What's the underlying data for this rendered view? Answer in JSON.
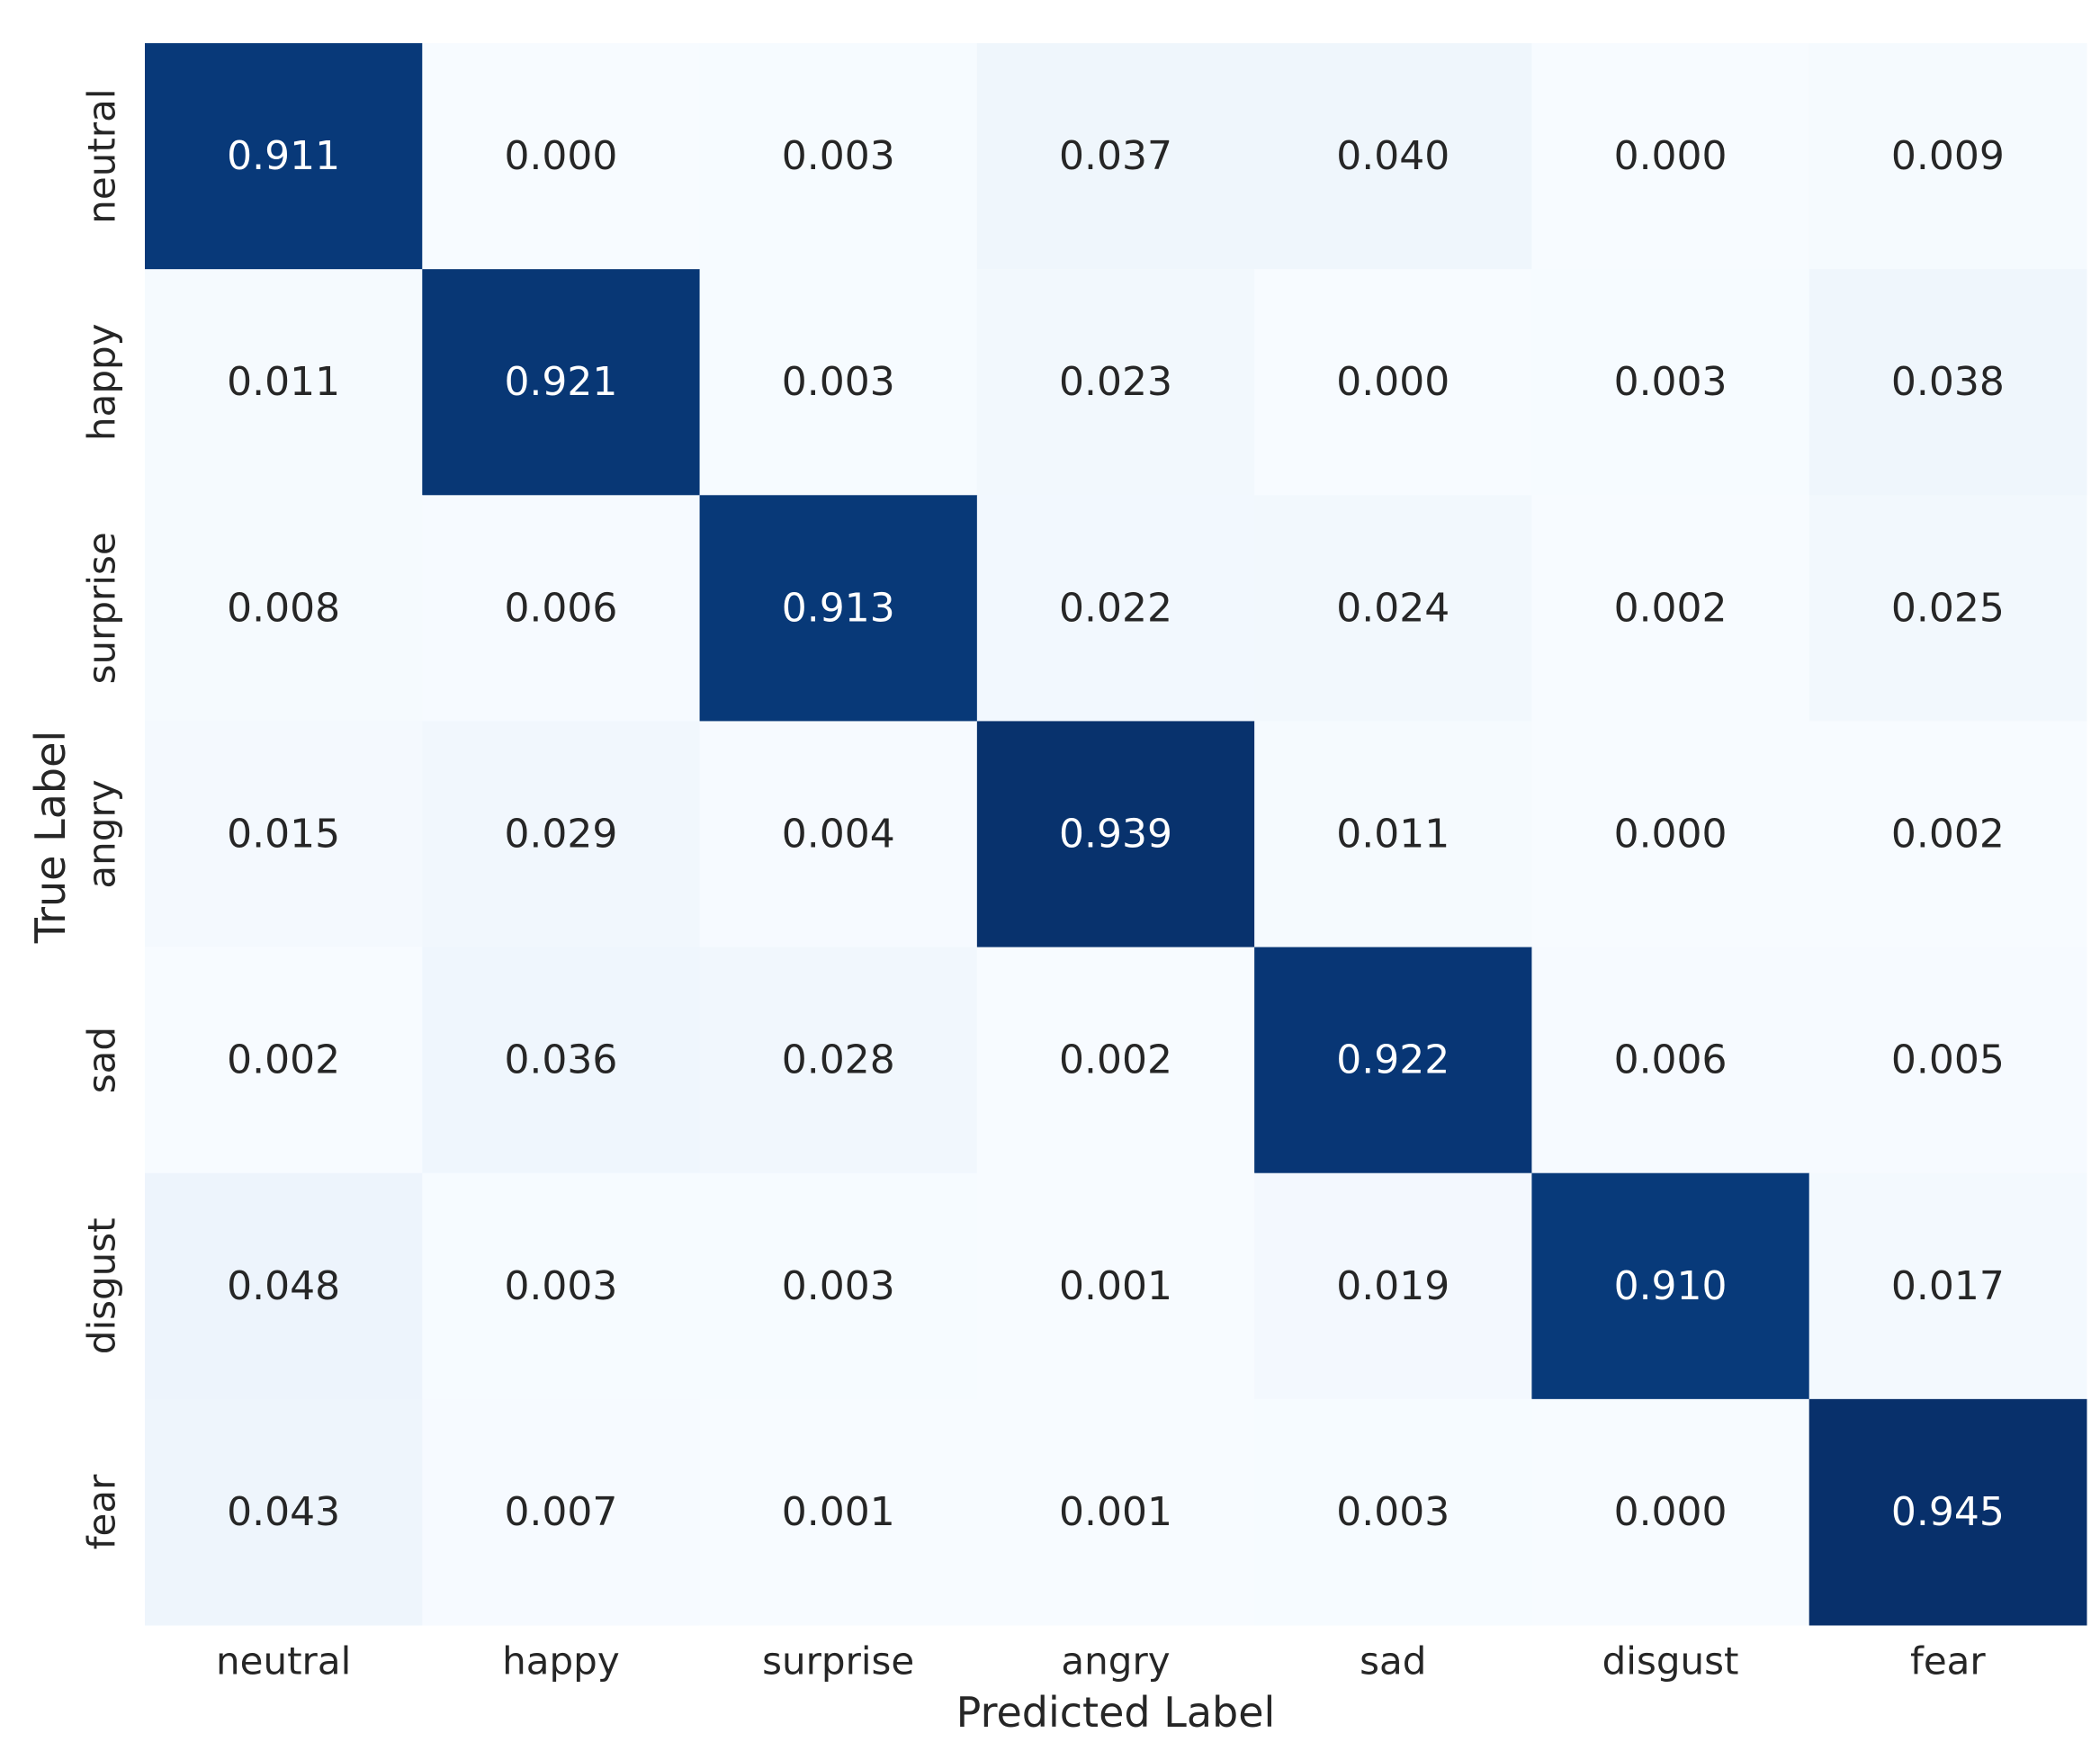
{
  "chart_data": {
    "type": "heatmap",
    "title": "",
    "xlabel": "Predicted Label",
    "ylabel": "True Label",
    "x_categories": [
      "neutral",
      "happy",
      "surprise",
      "angry",
      "sad",
      "disgust",
      "fear"
    ],
    "y_categories": [
      "neutral",
      "happy",
      "surprise",
      "angry",
      "sad",
      "disgust",
      "fear"
    ],
    "values": [
      [
        0.911,
        0.0,
        0.003,
        0.037,
        0.04,
        0.0,
        0.009
      ],
      [
        0.011,
        0.921,
        0.003,
        0.023,
        0.0,
        0.003,
        0.038
      ],
      [
        0.008,
        0.006,
        0.913,
        0.022,
        0.024,
        0.002,
        0.025
      ],
      [
        0.015,
        0.029,
        0.004,
        0.939,
        0.011,
        0.0,
        0.002
      ],
      [
        0.002,
        0.036,
        0.028,
        0.002,
        0.922,
        0.006,
        0.005
      ],
      [
        0.048,
        0.003,
        0.003,
        0.001,
        0.019,
        0.91,
        0.017
      ],
      [
        0.043,
        0.007,
        0.001,
        0.001,
        0.003,
        0.0,
        0.945
      ]
    ],
    "value_format": "0.000",
    "colormap": "Blues",
    "color_low": "#f7fbff",
    "color_high": "#08306b",
    "colorbar": false,
    "grid": false
  }
}
